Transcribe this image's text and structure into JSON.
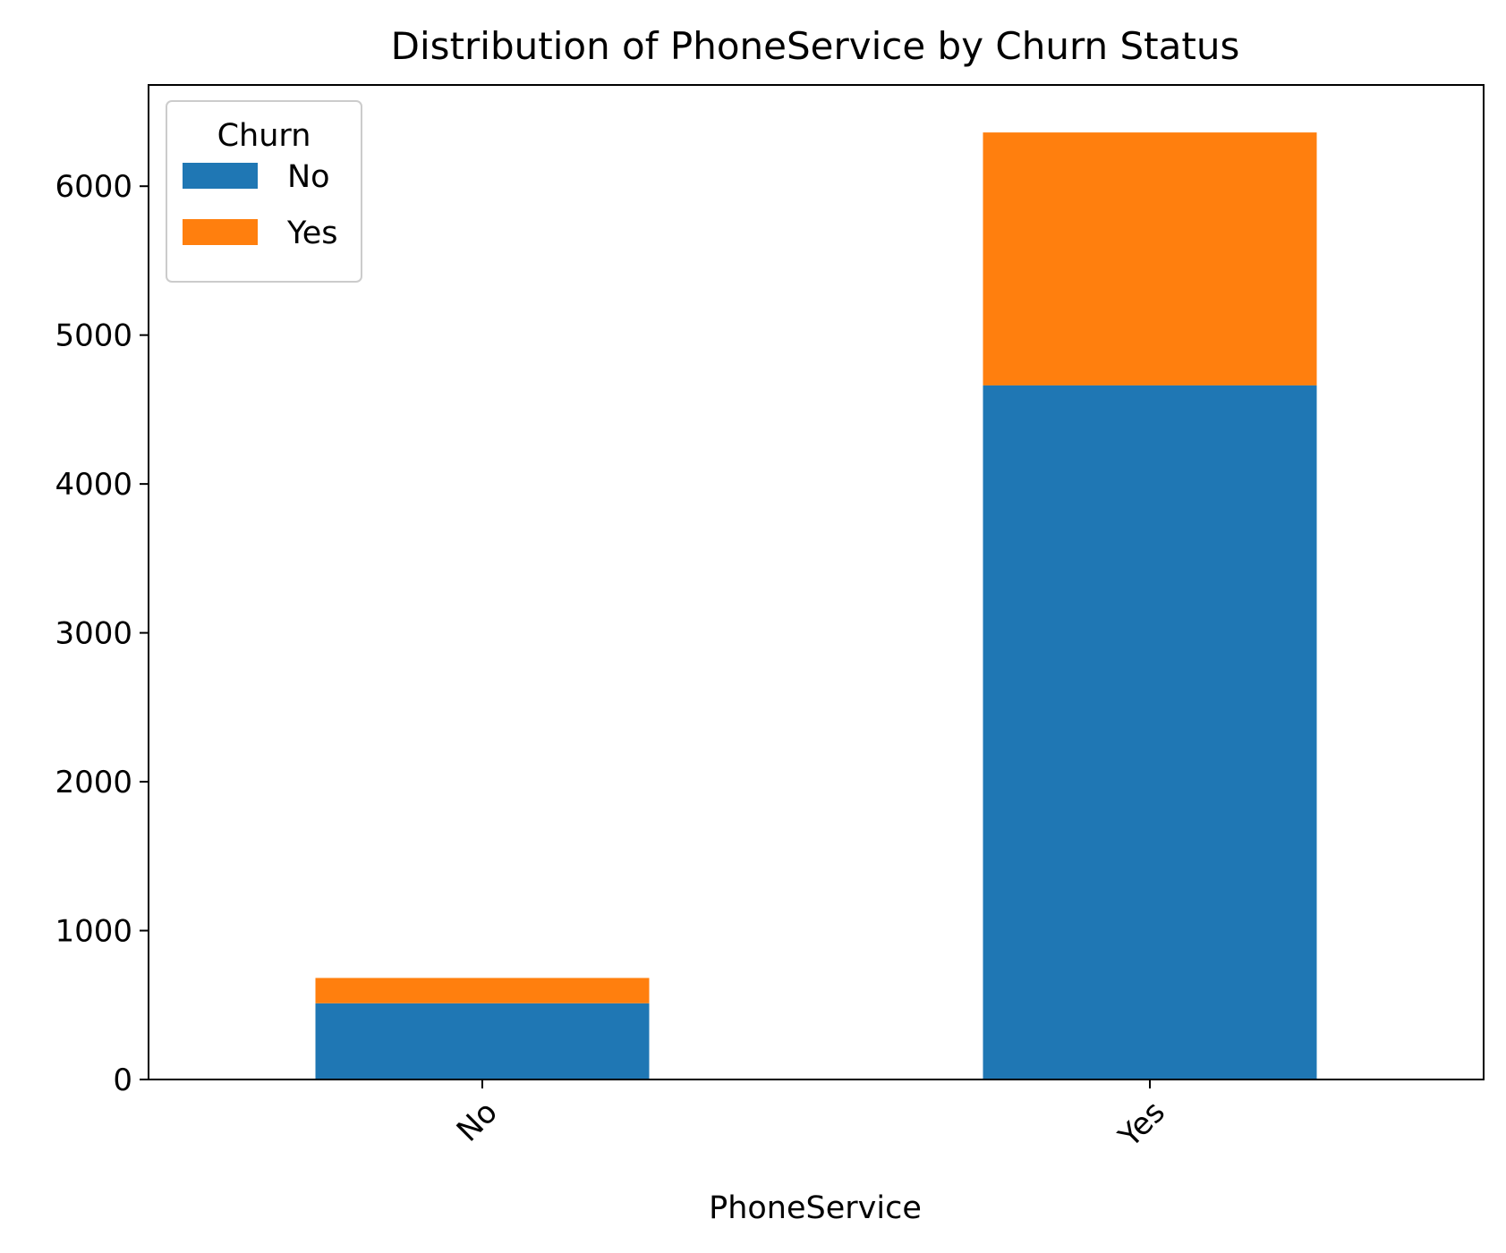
{
  "chart_data": {
    "type": "bar",
    "stacked": true,
    "title": "Distribution of PhoneService by Churn Status",
    "xlabel": "PhoneService",
    "ylabel": "",
    "categories": [
      "No",
      "Yes"
    ],
    "series": [
      {
        "name": "No",
        "values": [
          512,
          4662
        ],
        "color": "#1f77b4"
      },
      {
        "name": "Yes",
        "values": [
          170,
          1699
        ],
        "color": "#ff7f0e"
      }
    ],
    "ylim": [
      0,
      6680
    ],
    "yticks": [
      0,
      1000,
      2000,
      3000,
      4000,
      5000,
      6000
    ],
    "legend": {
      "title": "Churn",
      "position": "top-left"
    },
    "grid": false
  }
}
